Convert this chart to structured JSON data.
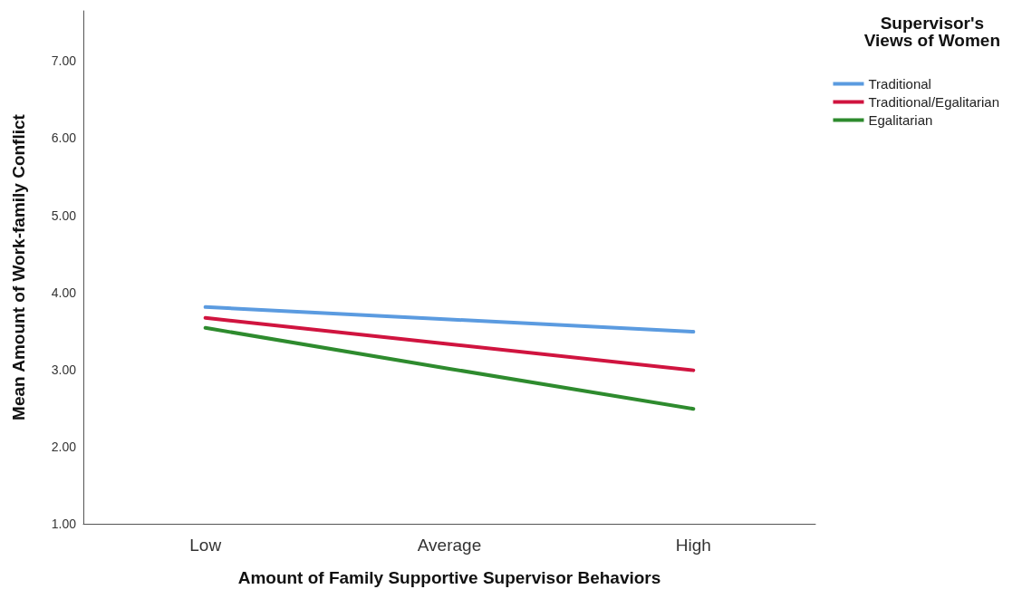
{
  "chart_data": {
    "type": "line",
    "xlabel": "Amount of Family Supportive Supervisor Behaviors",
    "ylabel": "Mean Amount of Work-family Conflict",
    "legend_title": "Supervisor's\nViews of Women",
    "categories": [
      "Low",
      "Average",
      "High"
    ],
    "series": [
      {
        "name": "Traditional",
        "color": "#5b9be0",
        "values": [
          3.81,
          3.65,
          3.49
        ]
      },
      {
        "name": "Traditional/Egalitarian",
        "color": "#d0143f",
        "values": [
          3.67,
          3.33,
          2.99
        ]
      },
      {
        "name": "Egalitarian",
        "color": "#2e8b2e",
        "values": [
          3.54,
          3.01,
          2.49
        ]
      }
    ],
    "ylim": [
      1,
      7.65
    ],
    "yticks": [
      {
        "value": 1,
        "label": "1.00"
      },
      {
        "value": 2,
        "label": "2.00"
      },
      {
        "value": 3,
        "label": "3.00"
      },
      {
        "value": 4,
        "label": "4.00"
      },
      {
        "value": 5,
        "label": "5.00"
      },
      {
        "value": 6,
        "label": "6.00"
      },
      {
        "value": 7,
        "label": "7.00"
      }
    ],
    "grid": false,
    "legend": "top right",
    "marker": "none",
    "line_style": "solid"
  }
}
